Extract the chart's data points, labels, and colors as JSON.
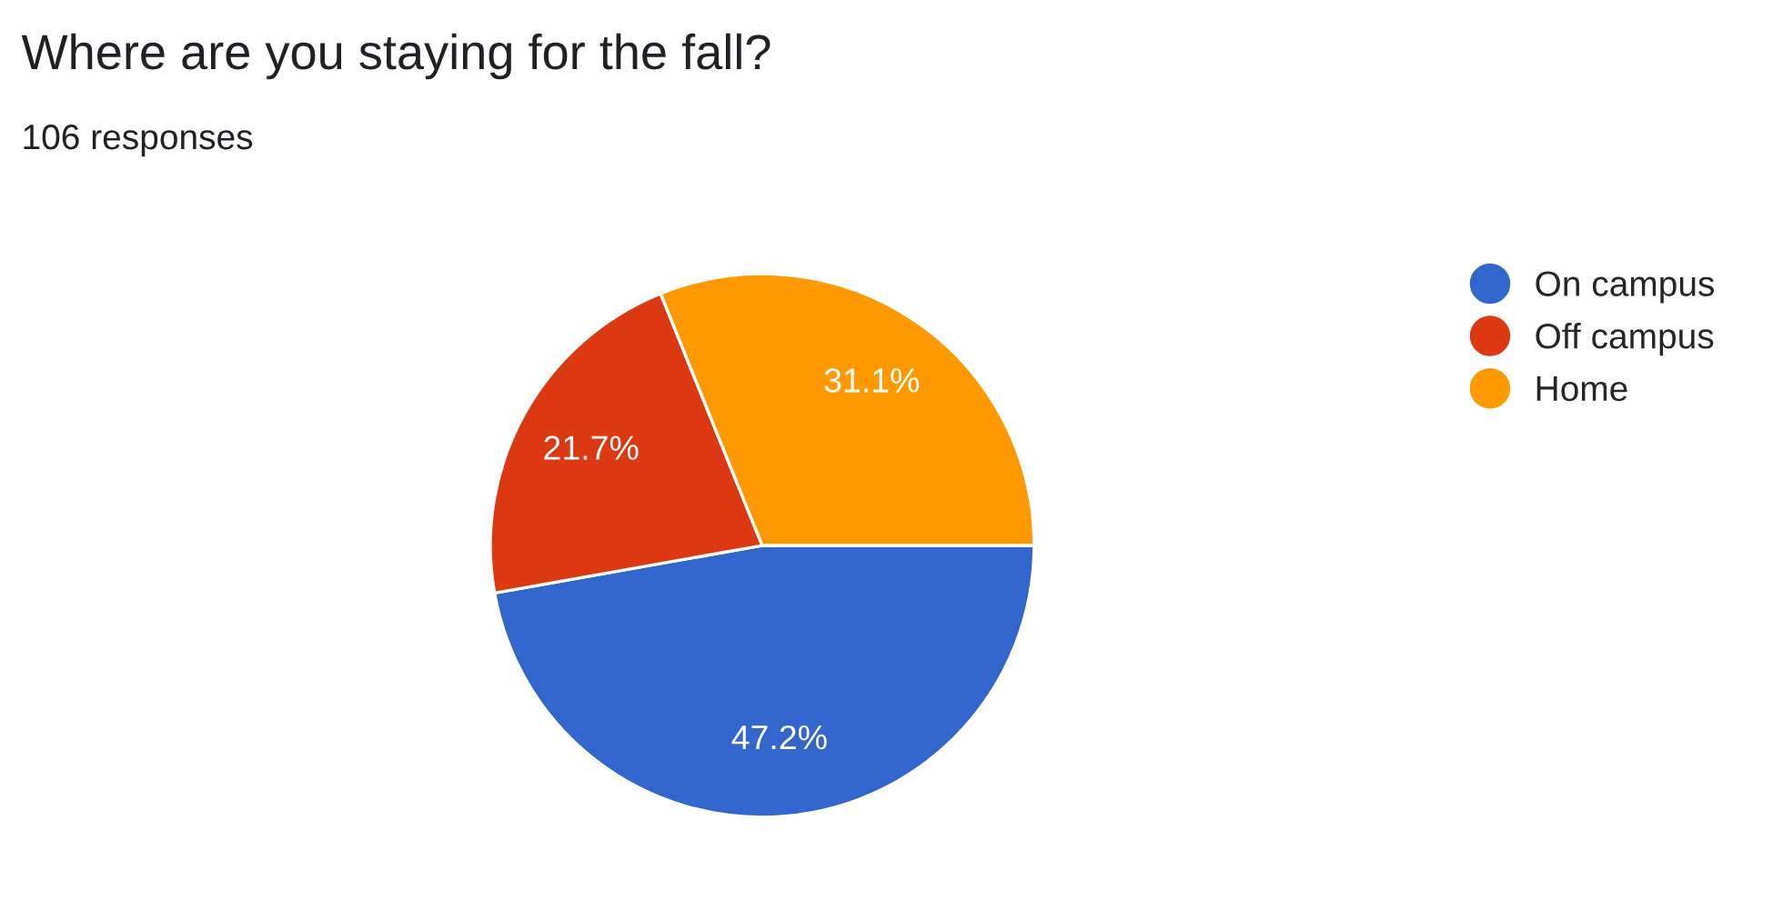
{
  "chart_data": {
    "type": "pie",
    "title": "Where are you staying for the fall?",
    "subtitle": "106 responses",
    "categories": [
      "On campus",
      "Off campus",
      "Home"
    ],
    "values": [
      47.2,
      21.7,
      31.1
    ],
    "colors": [
      "#3366cc",
      "#dc3912",
      "#ff9900"
    ],
    "value_labels": [
      "47.2%",
      "21.7%",
      "31.1%"
    ],
    "legend": "right"
  }
}
